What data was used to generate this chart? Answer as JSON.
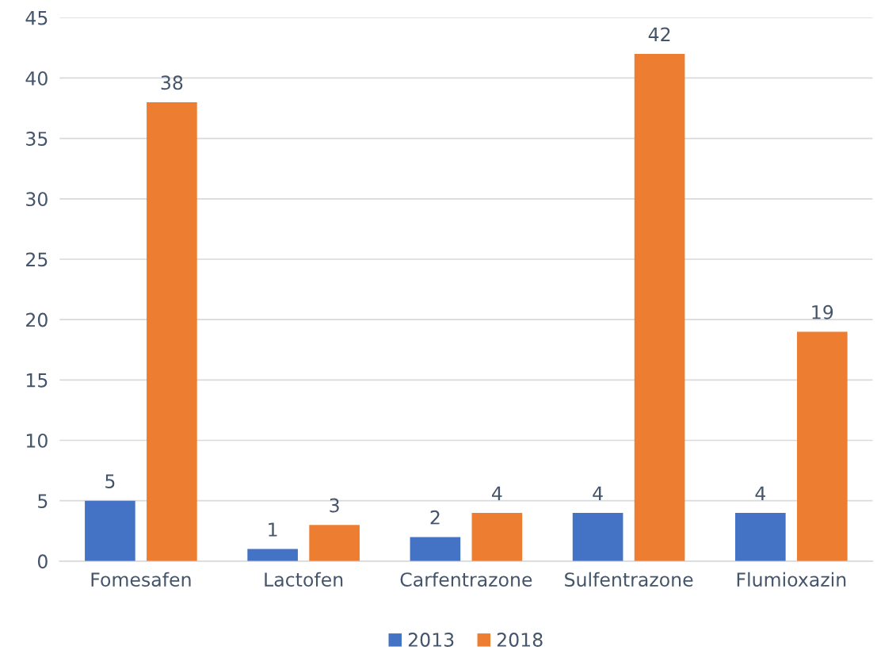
{
  "chart_data": {
    "type": "bar",
    "categories": [
      "Fomesafen",
      "Lactofen",
      "Carfentrazone",
      "Sulfentrazone",
      "Flumioxazin"
    ],
    "series": [
      {
        "name": "2013",
        "color": "#4472c4",
        "values": [
          5,
          1,
          2,
          4,
          4
        ]
      },
      {
        "name": "2018",
        "color": "#ed7d31",
        "values": [
          38,
          3,
          4,
          42,
          19
        ]
      }
    ],
    "ylim": [
      0,
      45
    ],
    "yticks": [
      0,
      5,
      10,
      15,
      20,
      25,
      30,
      35,
      40,
      45
    ],
    "grid": "y",
    "legend": "bottom",
    "data_labels": true
  }
}
